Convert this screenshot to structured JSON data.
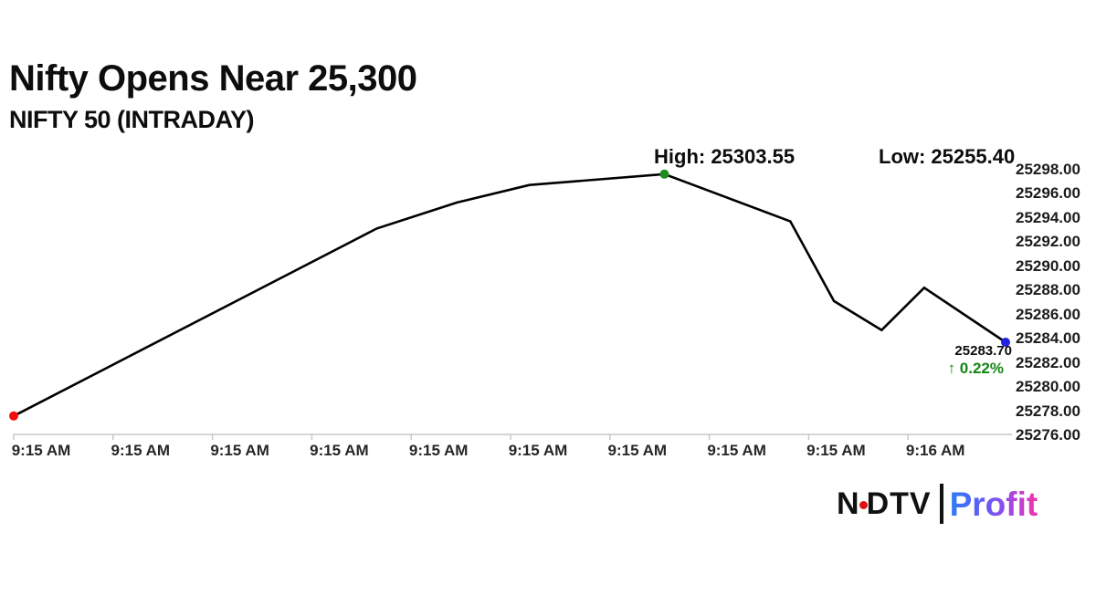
{
  "header": {
    "title": "Nifty Opens Near 25,300",
    "subtitle": "NIFTY 50 (INTRADAY)"
  },
  "chart_data": {
    "type": "line",
    "title": "Nifty Opens Near 25,300",
    "subtitle": "NIFTY 50 (INTRADAY)",
    "series": [
      {
        "name": "NIFTY 50",
        "points": [
          {
            "t": 0.0,
            "value": 25277.6
          },
          {
            "t": 0.366,
            "value": 25293.1
          },
          {
            "t": 0.447,
            "value": 25295.25
          },
          {
            "t": 0.52,
            "value": 25296.7
          },
          {
            "t": 0.656,
            "value": 25297.6
          },
          {
            "t": 0.783,
            "value": 25293.7
          },
          {
            "t": 0.827,
            "value": 25287.1
          },
          {
            "t": 0.875,
            "value": 25284.7
          },
          {
            "t": 0.918,
            "value": 25288.2
          },
          {
            "t": 1.0,
            "value": 25283.7
          }
        ]
      }
    ],
    "x_tick_labels": [
      "9:15 AM",
      "9:15 AM",
      "9:15 AM",
      "9:15 AM",
      "9:15 AM",
      "9:15 AM",
      "9:15 AM",
      "9:15 AM",
      "9:15 AM",
      "9:16 AM"
    ],
    "y_tick_labels": [
      "25298.00",
      "25296.00",
      "25294.00",
      "25292.00",
      "25290.00",
      "25288.00",
      "25286.00",
      "25284.00",
      "25282.00",
      "25280.00",
      "25278.00",
      "25276.00"
    ],
    "ylim": [
      25276,
      25298
    ],
    "y_axis_side": "right",
    "grid": false,
    "legend": "none",
    "line_color": "#000000",
    "axis_color": "#c8c8c8",
    "markers": [
      {
        "point_index": 0,
        "color": "#ee1111",
        "name": "open-marker"
      },
      {
        "point_index": 4,
        "color": "#1e8b1e",
        "name": "high-marker"
      },
      {
        "point_index": 9,
        "color": "#2222dd",
        "name": "last-marker"
      }
    ],
    "annotations": {
      "high_label": "High: 25303.55",
      "low_label": "Low: 25255.40",
      "last_price": "25283.70",
      "change_percent": "↑ 0.22%",
      "change_color": "#128712"
    }
  },
  "logo": {
    "ndtv_n": "N",
    "ndtv_dtv": "DTV",
    "profit": "Profit"
  }
}
